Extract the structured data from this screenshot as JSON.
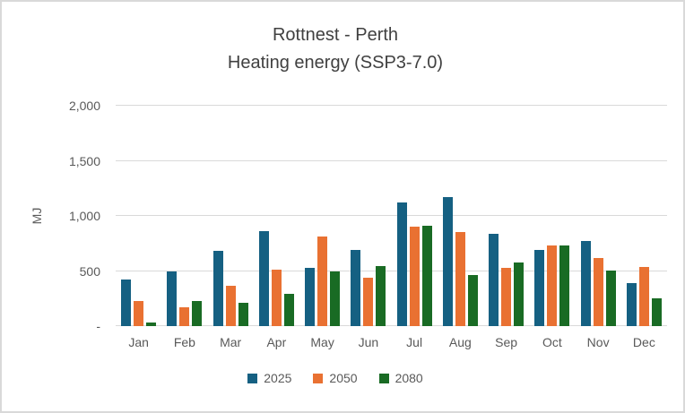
{
  "window": {
    "background": "#ffffff",
    "border_color": "#d9d9d9"
  },
  "chart_data": {
    "type": "bar",
    "title": "Rottnest - Perth Heating energy (SSP3-7.0)",
    "title_lines": [
      "Rottnest - Perth",
      "Heating energy (SSP3-7.0)"
    ],
    "ylabel": "MJ",
    "xlabel": "",
    "grid": true,
    "gridline_color": "#d9d9d9",
    "legend_position": "bottom",
    "y_axis": {
      "min": 0,
      "max": 2000,
      "tick_interval": 500,
      "tick_labels": [
        "-",
        "500",
        "1,000",
        "1,500",
        "2,000"
      ]
    },
    "categories": [
      "Jan",
      "Feb",
      "Mar",
      "Apr",
      "May",
      "Jun",
      "Jul",
      "Aug",
      "Sep",
      "Oct",
      "Nov",
      "Dec"
    ],
    "series": [
      {
        "name": "2025",
        "color": "#156082",
        "values": [
          420,
          500,
          685,
          865,
          530,
          690,
          1120,
          1170,
          835,
          690,
          770,
          390
        ]
      },
      {
        "name": "2050",
        "color": "#E97132",
        "values": [
          230,
          170,
          365,
          515,
          810,
          440,
          905,
          855,
          530,
          730,
          620,
          535
        ]
      },
      {
        "name": "2080",
        "color": "#196B24",
        "values": [
          30,
          225,
          215,
          295,
          495,
          545,
          910,
          460,
          580,
          735,
          505,
          250
        ]
      }
    ]
  }
}
